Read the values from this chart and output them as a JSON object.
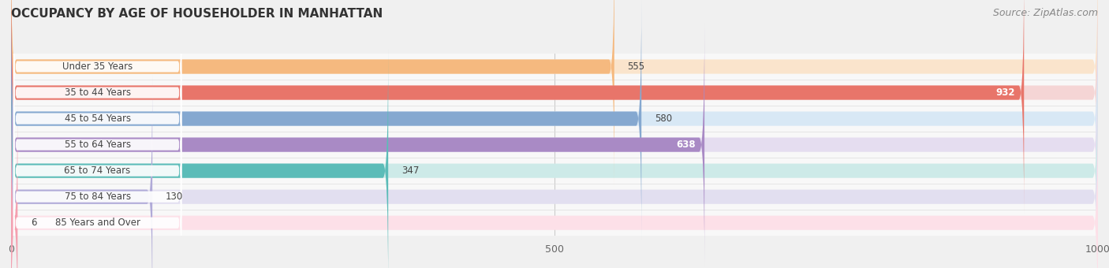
{
  "title": "OCCUPANCY BY AGE OF HOUSEHOLDER IN MANHATTAN",
  "source": "Source: ZipAtlas.com",
  "categories": [
    "Under 35 Years",
    "35 to 44 Years",
    "45 to 54 Years",
    "55 to 64 Years",
    "65 to 74 Years",
    "75 to 84 Years",
    "85 Years and Over"
  ],
  "values": [
    555,
    932,
    580,
    638,
    347,
    130,
    6
  ],
  "bar_colors": [
    "#f5b97f",
    "#e8756a",
    "#85a8d0",
    "#a98ac5",
    "#5bbcb8",
    "#b0aad8",
    "#f5a0b0"
  ],
  "bar_bg_colors": [
    "#fae4cc",
    "#f5d5d5",
    "#d8e8f5",
    "#e5ddf0",
    "#cdeae8",
    "#e2dff0",
    "#fde0e8"
  ],
  "value_inside": [
    false,
    true,
    false,
    true,
    false,
    false,
    false
  ],
  "xlim_data": [
    0,
    1000
  ],
  "xticks": [
    0,
    500,
    1000
  ],
  "title_fontsize": 11,
  "source_fontsize": 9,
  "bar_height": 0.55,
  "background_color": "#f0f0f0",
  "plot_bg_color": "#f8f8f8",
  "label_pill_color": "#ffffff",
  "label_text_color": "#444444",
  "value_text_color_outside": "#444444",
  "value_text_color_inside": "#ffffff"
}
